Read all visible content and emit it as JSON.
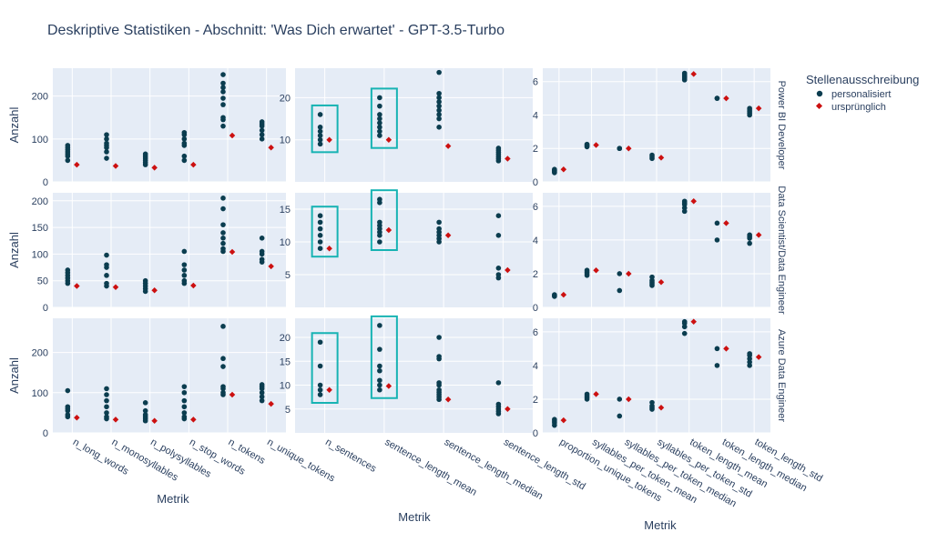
{
  "title": "Deskriptive Statistiken - Abschnitt: 'Was Dich erwartet' - GPT-3.5-Turbo",
  "legend": {
    "title": "Stellenausschreibung",
    "items": [
      {
        "label": "personalisiert",
        "color": "#0b3d4f",
        "marker": "circle"
      },
      {
        "label": "ursprünglich",
        "color": "#cc1010",
        "marker": "diamond"
      }
    ]
  },
  "colors": {
    "plot_bg": "#e5ecf6",
    "grid": "#ffffff",
    "text": "#2a3f5f",
    "highlight_box": "#17b3b3"
  },
  "chart_data": {
    "type": "scatter",
    "rows": [
      "Power BI Developer",
      "Data Scientist/Data Engineer",
      "Azure Data Engineer"
    ],
    "row_ylabel": "Anzahl",
    "columns": [
      {
        "xlabel": "Metrik",
        "categories": [
          "n_long_words",
          "n_monosyllables",
          "n_polysyllables",
          "n_stop_words",
          "n_tokens",
          "n_unique_tokens"
        ],
        "yticks": [
          [
            0,
            100,
            200
          ],
          [
            0,
            50,
            100,
            150,
            200
          ],
          [
            0,
            100,
            200
          ]
        ],
        "ylim": [
          [
            0,
            265
          ],
          [
            0,
            215
          ],
          [
            0,
            285
          ]
        ],
        "personalisiert": [
          [
            [
              50,
              60,
              65,
              70,
              75,
              80,
              85
            ],
            [
              55,
              70,
              80,
              85,
              90,
              100,
              110
            ],
            [
              40,
              45,
              50,
              55,
              60,
              65
            ],
            [
              50,
              60,
              85,
              90,
              100,
              110,
              115
            ],
            [
              130,
              145,
              150,
              180,
              195,
              210,
              220,
              230,
              250
            ],
            [
              100,
              110,
              120,
              130,
              135,
              140
            ]
          ],
          [
            [
              45,
              50,
              55,
              60,
              65,
              70
            ],
            [
              40,
              45,
              60,
              75,
              80,
              98
            ],
            [
              30,
              35,
              40,
              45,
              50
            ],
            [
              45,
              50,
              60,
              70,
              80,
              105
            ],
            [
              105,
              110,
              120,
              130,
              140,
              155,
              185,
              205
            ],
            [
              85,
              90,
              100,
              105,
              130
            ]
          ],
          [
            [
              40,
              45,
              55,
              60,
              65,
              105
            ],
            [
              35,
              40,
              50,
              65,
              80,
              95,
              110
            ],
            [
              30,
              35,
              40,
              45,
              55,
              75
            ],
            [
              35,
              40,
              50,
              65,
              80,
              100,
              115
            ],
            [
              95,
              100,
              110,
              115,
              165,
              185,
              265
            ],
            [
              80,
              90,
              100,
              110,
              115,
              120
            ]
          ]
        ],
        "urspruenglich": [
          [
            40,
            37,
            33,
            40,
            108,
            80
          ],
          [
            40,
            38,
            32,
            41,
            104,
            77
          ],
          [
            38,
            33,
            30,
            33,
            95,
            72
          ]
        ]
      },
      {
        "xlabel": "Metrik",
        "categories": [
          "n_sentences",
          "sentence_length_mean",
          "sentence_length_median",
          "sentence_length_std"
        ],
        "yticks": [
          [
            10,
            20
          ],
          [
            5,
            10,
            15
          ],
          [
            5,
            10,
            15,
            20
          ]
        ],
        "ylim": [
          [
            0,
            27
          ],
          [
            0,
            17.5
          ],
          [
            0,
            24
          ]
        ],
        "personalisiert": [
          [
            [
              9,
              10,
              11,
              12,
              13,
              16
            ],
            [
              11,
              12,
              13,
              14,
              15,
              16,
              18,
              20
            ],
            [
              13,
              15,
              16,
              17,
              18,
              19,
              20,
              21,
              26
            ],
            [
              5,
              5.5,
              6,
              6.5,
              7,
              7.5,
              8
            ]
          ],
          [
            [
              9,
              10,
              11,
              12,
              13,
              14
            ],
            [
              10,
              11,
              11.5,
              12,
              12.5,
              13,
              16,
              16.5
            ],
            [
              10,
              10.5,
              11,
              11.5,
              12,
              13
            ],
            [
              4.5,
              5,
              6,
              11,
              14
            ]
          ],
          [
            [
              8,
              9,
              10,
              14,
              19
            ],
            [
              9,
              10,
              11,
              13,
              14,
              17.5,
              22.5
            ],
            [
              7,
              7.5,
              8,
              8.5,
              9,
              10,
              10.5,
              15.5,
              16,
              20
            ],
            [
              4,
              4.5,
              5,
              5.5,
              6,
              10.5
            ]
          ]
        ],
        "urspruenglich": [
          [
            10,
            10,
            8.5,
            5.5
          ],
          [
            9,
            11.8,
            11,
            5.7
          ],
          [
            9,
            9.8,
            7,
            5
          ]
        ],
        "highlight_categories": [
          "n_sentences",
          "sentence_length_mean"
        ]
      },
      {
        "xlabel": "Metrik",
        "categories": [
          "proportion_unique_tokens",
          "syllables_per_token_mean",
          "syllables_per_token_median",
          "syllables_per_token_std",
          "token_length_mean",
          "token_length_median",
          "token_length_std"
        ],
        "yticks": [
          [
            0,
            2,
            4,
            6
          ],
          [
            0,
            2,
            4,
            6
          ],
          [
            0,
            2,
            4,
            6
          ]
        ],
        "ylim": [
          [
            0,
            6.8
          ],
          [
            0,
            6.8
          ],
          [
            0,
            6.8
          ]
        ],
        "personalisiert": [
          [
            [
              0.55,
              0.6,
              0.65,
              0.7,
              0.75
            ],
            [
              2.1,
              2.15,
              2.2,
              2.25
            ],
            [
              2,
              2
            ],
            [
              1.4,
              1.5,
              1.6
            ],
            [
              6.1,
              6.2,
              6.3,
              6.4,
              6.5
            ],
            [
              5,
              5
            ],
            [
              4,
              4.1,
              4.2,
              4.3,
              4.4
            ]
          ],
          [
            [
              0.65,
              0.7,
              0.75
            ],
            [
              1.9,
              2,
              2.1,
              2.2
            ],
            [
              1,
              2
            ],
            [
              1.3,
              1.4,
              1.5,
              1.6,
              1.8
            ],
            [
              5.7,
              5.9,
              6.1,
              6.2,
              6.3
            ],
            [
              4,
              5
            ],
            [
              3.8,
              4.1,
              4.2,
              4.3
            ]
          ],
          [
            [
              0.45,
              0.6,
              0.7,
              0.8
            ],
            [
              2,
              2.1,
              2.2,
              2.3
            ],
            [
              1,
              2
            ],
            [
              1.4,
              1.5,
              1.6,
              1.8
            ],
            [
              5.9,
              6.3,
              6.5,
              6.6
            ],
            [
              4,
              5
            ],
            [
              4,
              4.2,
              4.4,
              4.6,
              4.7
            ]
          ]
        ],
        "urspruenglich": [
          [
            0.75,
            2.2,
            2,
            1.45,
            6.45,
            5,
            4.4
          ],
          [
            0.75,
            2.2,
            2,
            1.5,
            6.3,
            5,
            4.3
          ],
          [
            0.75,
            2.3,
            2,
            1.5,
            6.6,
            5,
            4.5
          ]
        ]
      }
    ]
  }
}
